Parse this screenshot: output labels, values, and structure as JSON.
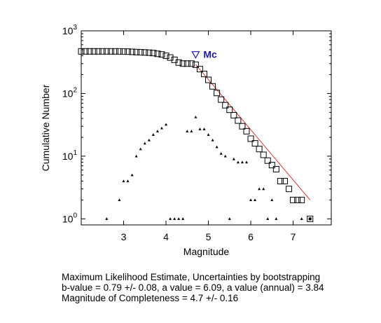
{
  "chart_data": {
    "type": "scatter",
    "xlabel": "Magnitude",
    "ylabel": "Cumulative Number",
    "xlim": [
      2.0,
      7.9
    ],
    "ylim": [
      0.8,
      1000
    ],
    "yscale": "log",
    "grid": false,
    "x_ticks": [
      {
        "value": 3,
        "label": "3"
      },
      {
        "value": 4,
        "label": "4"
      },
      {
        "value": 5,
        "label": "5"
      },
      {
        "value": 6,
        "label": "6"
      },
      {
        "value": 7,
        "label": "7"
      }
    ],
    "y_ticks": [
      {
        "value": 1,
        "base": "10",
        "exp": "0"
      },
      {
        "value": 10,
        "base": "10",
        "exp": "1"
      },
      {
        "value": 100,
        "base": "10",
        "exp": "2"
      },
      {
        "value": 1000,
        "base": "10",
        "exp": "3"
      }
    ],
    "series": [
      {
        "marker": "square",
        "color": "#000000",
        "points": [
          [
            2.0,
            470
          ],
          [
            2.1,
            470
          ],
          [
            2.2,
            470
          ],
          [
            2.3,
            470
          ],
          [
            2.4,
            470
          ],
          [
            2.5,
            470
          ],
          [
            2.6,
            470
          ],
          [
            2.7,
            470
          ],
          [
            2.8,
            470
          ],
          [
            2.9,
            470
          ],
          [
            3.0,
            468
          ],
          [
            3.1,
            466
          ],
          [
            3.2,
            462
          ],
          [
            3.3,
            458
          ],
          [
            3.4,
            455
          ],
          [
            3.5,
            452
          ],
          [
            3.6,
            448
          ],
          [
            3.7,
            442
          ],
          [
            3.8,
            430
          ],
          [
            3.9,
            420
          ],
          [
            4.0,
            400
          ],
          [
            4.1,
            375
          ],
          [
            4.2,
            345
          ],
          [
            4.3,
            312
          ],
          [
            4.4,
            300
          ],
          [
            4.5,
            300
          ],
          [
            4.6,
            300
          ],
          [
            4.7,
            288
          ],
          [
            4.8,
            245
          ],
          [
            4.9,
            205
          ],
          [
            5.0,
            165
          ],
          [
            5.1,
            130
          ],
          [
            5.2,
            102
          ],
          [
            5.3,
            80
          ],
          [
            5.4,
            65
          ],
          [
            5.5,
            55
          ],
          [
            5.6,
            45
          ],
          [
            5.7,
            37
          ],
          [
            5.8,
            30
          ],
          [
            5.9,
            25
          ],
          [
            6.0,
            19
          ],
          [
            6.1,
            16
          ],
          [
            6.2,
            13
          ],
          [
            6.3,
            10.5
          ],
          [
            6.4,
            8.5
          ],
          [
            6.5,
            7.2
          ],
          [
            6.6,
            6.2
          ],
          [
            6.7,
            4
          ],
          [
            6.8,
            4
          ],
          [
            6.9,
            3
          ],
          [
            7.0,
            2
          ],
          [
            7.1,
            2
          ],
          [
            7.2,
            2
          ],
          [
            7.4,
            1
          ]
        ]
      },
      {
        "marker": "triangle",
        "color": "#000000",
        "points": [
          [
            2.6,
            1
          ],
          [
            2.9,
            2
          ],
          [
            3.0,
            4
          ],
          [
            3.1,
            4
          ],
          [
            3.2,
            5
          ],
          [
            3.3,
            10
          ],
          [
            3.4,
            13
          ],
          [
            3.5,
            16
          ],
          [
            3.6,
            18
          ],
          [
            3.7,
            22
          ],
          [
            3.8,
            25
          ],
          [
            3.9,
            28
          ],
          [
            4.0,
            32
          ],
          [
            4.1,
            1
          ],
          [
            4.2,
            1
          ],
          [
            4.3,
            1
          ],
          [
            4.4,
            1
          ],
          [
            4.5,
            25
          ],
          [
            4.6,
            25
          ],
          [
            4.7,
            42
          ],
          [
            4.8,
            27
          ],
          [
            4.9,
            27
          ],
          [
            5.0,
            22
          ],
          [
            5.1,
            18
          ],
          [
            5.2,
            14
          ],
          [
            5.3,
            11
          ],
          [
            5.4,
            10
          ],
          [
            5.5,
            1
          ],
          [
            5.6,
            9
          ],
          [
            5.7,
            8
          ],
          [
            5.8,
            8
          ],
          [
            5.9,
            8
          ],
          [
            6.0,
            2
          ],
          [
            6.1,
            2
          ],
          [
            6.2,
            3
          ],
          [
            6.3,
            3
          ],
          [
            6.4,
            1
          ],
          [
            6.5,
            2
          ],
          [
            6.6,
            1
          ],
          [
            7.2,
            1
          ]
        ]
      },
      {
        "type": "line",
        "color": "#e03030",
        "points": [
          [
            4.7,
            290
          ],
          [
            7.4,
            2.0
          ]
        ]
      }
    ],
    "annotations": [
      {
        "label": "Mc",
        "x": 4.7,
        "y": 420,
        "marker": "inverted-triangle",
        "color": "#1a1aa6"
      }
    ]
  },
  "summary": {
    "line1": "Maximum Likelihood Estimate, Uncertainties by bootstrapping",
    "line2": "b-value = 0.79 +/- 0.08,  a value = 6.09,  a value (annual) = 3.84",
    "line3": "Magnitude of Completeness = 4.7 +/- 0.16"
  }
}
